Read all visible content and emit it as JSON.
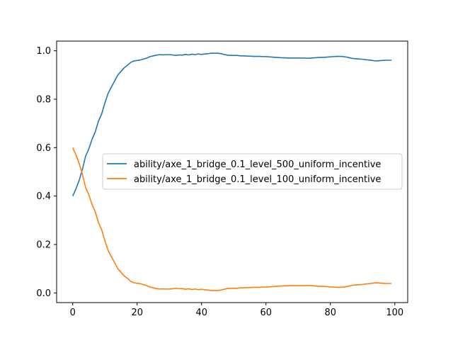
{
  "chart_data": {
    "type": "line",
    "title": "",
    "xlabel": "",
    "ylabel": "",
    "xlim": [
      -5,
      104
    ],
    "ylim": [
      -0.04,
      1.04
    ],
    "x_ticks": [
      0,
      20,
      40,
      60,
      80,
      100
    ],
    "y_ticks": [
      0.0,
      0.2,
      0.4,
      0.6,
      0.8,
      1.0
    ],
    "x_tick_labels": [
      "0",
      "20",
      "40",
      "60",
      "80",
      "100"
    ],
    "y_tick_labels": [
      "0.0",
      "0.2",
      "0.4",
      "0.6",
      "0.8",
      "1.0"
    ],
    "grid": false,
    "legend_position": "center-right",
    "x": [
      0,
      1,
      2,
      3,
      4,
      5,
      6,
      7,
      8,
      9,
      10,
      11,
      12,
      13,
      14,
      15,
      16,
      17,
      18,
      19,
      20,
      21,
      22,
      23,
      24,
      25,
      26,
      27,
      28,
      29,
      30,
      31,
      32,
      33,
      34,
      35,
      36,
      37,
      38,
      39,
      40,
      41,
      42,
      43,
      44,
      45,
      46,
      47,
      48,
      49,
      50,
      51,
      52,
      53,
      54,
      55,
      56,
      57,
      58,
      59,
      60,
      61,
      62,
      63,
      64,
      65,
      66,
      67,
      68,
      69,
      70,
      71,
      72,
      73,
      74,
      75,
      76,
      77,
      78,
      79,
      80,
      81,
      82,
      83,
      84,
      85,
      86,
      87,
      88,
      89,
      90,
      91,
      92,
      93,
      94,
      95,
      96,
      97,
      98,
      99
    ],
    "series": [
      {
        "name": "ability/axe_1_bridge_0.1_level_500_uniform_incentive",
        "color": "#1f77b4",
        "values": [
          0.4,
          0.43,
          0.465,
          0.51,
          0.565,
          0.595,
          0.635,
          0.665,
          0.71,
          0.74,
          0.785,
          0.825,
          0.85,
          0.875,
          0.9,
          0.915,
          0.93,
          0.94,
          0.952,
          0.958,
          0.96,
          0.962,
          0.966,
          0.97,
          0.976,
          0.979,
          0.982,
          0.984,
          0.983,
          0.984,
          0.984,
          0.983,
          0.981,
          0.983,
          0.982,
          0.985,
          0.983,
          0.986,
          0.984,
          0.987,
          0.985,
          0.987,
          0.988,
          0.99,
          0.99,
          0.99,
          0.988,
          0.985,
          0.982,
          0.981,
          0.981,
          0.981,
          0.979,
          0.979,
          0.978,
          0.978,
          0.977,
          0.977,
          0.977,
          0.976,
          0.976,
          0.975,
          0.974,
          0.973,
          0.972,
          0.971,
          0.971,
          0.97,
          0.97,
          0.97,
          0.97,
          0.97,
          0.97,
          0.969,
          0.97,
          0.971,
          0.972,
          0.973,
          0.973,
          0.974,
          0.975,
          0.976,
          0.977,
          0.977,
          0.976,
          0.974,
          0.971,
          0.968,
          0.967,
          0.966,
          0.965,
          0.963,
          0.962,
          0.96,
          0.958,
          0.959,
          0.96,
          0.961,
          0.961,
          0.961
        ]
      },
      {
        "name": "ability/axe_1_bridge_0.1_level_100_uniform_incentive",
        "color": "#ff7f0e",
        "values": [
          0.6,
          0.57,
          0.535,
          0.49,
          0.435,
          0.405,
          0.365,
          0.335,
          0.29,
          0.26,
          0.215,
          0.175,
          0.15,
          0.125,
          0.1,
          0.085,
          0.07,
          0.06,
          0.048,
          0.042,
          0.04,
          0.038,
          0.034,
          0.03,
          0.024,
          0.021,
          0.018,
          0.016,
          0.017,
          0.016,
          0.016,
          0.017,
          0.019,
          0.017,
          0.018,
          0.015,
          0.017,
          0.014,
          0.016,
          0.013,
          0.015,
          0.013,
          0.012,
          0.01,
          0.01,
          0.01,
          0.012,
          0.015,
          0.018,
          0.019,
          0.019,
          0.019,
          0.021,
          0.021,
          0.022,
          0.022,
          0.023,
          0.023,
          0.023,
          0.024,
          0.024,
          0.025,
          0.026,
          0.027,
          0.028,
          0.029,
          0.029,
          0.03,
          0.03,
          0.03,
          0.03,
          0.03,
          0.03,
          0.031,
          0.03,
          0.029,
          0.028,
          0.027,
          0.027,
          0.026,
          0.025,
          0.024,
          0.023,
          0.023,
          0.024,
          0.026,
          0.029,
          0.032,
          0.033,
          0.034,
          0.035,
          0.037,
          0.038,
          0.04,
          0.042,
          0.041,
          0.04,
          0.039,
          0.039,
          0.039
        ]
      }
    ]
  }
}
